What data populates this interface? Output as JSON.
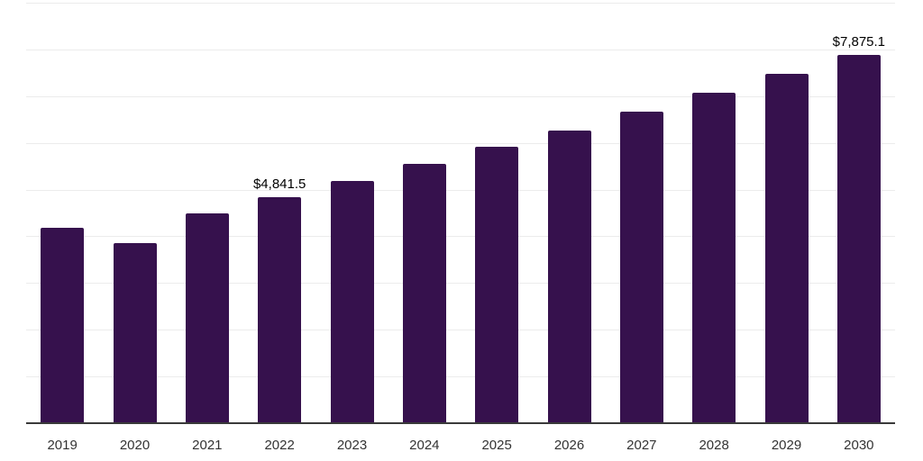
{
  "chart_data": {
    "type": "bar",
    "title": "",
    "xlabel": "",
    "ylabel": "",
    "categories": [
      "2019",
      "2020",
      "2021",
      "2022",
      "2023",
      "2024",
      "2025",
      "2026",
      "2027",
      "2028",
      "2029",
      "2030"
    ],
    "values": [
      4190,
      3855,
      4500,
      4841.5,
      5185,
      5550,
      5910,
      6270,
      6660,
      7065,
      7470,
      7875.1
    ],
    "data_labels": [
      "",
      "",
      "",
      "$4,841.5",
      "",
      "",
      "",
      "",
      "",
      "",
      "",
      "$7,875.1"
    ],
    "ylim": [
      0,
      9000
    ],
    "gridline_interval": 1000,
    "grid": true,
    "legend_position": "none"
  },
  "colors": {
    "bar": "#36114d",
    "gridline": "#ececec",
    "axis_line": "#3a3a3a",
    "tick_label": "#333333",
    "data_label": "#000000",
    "background": "#ffffff"
  }
}
